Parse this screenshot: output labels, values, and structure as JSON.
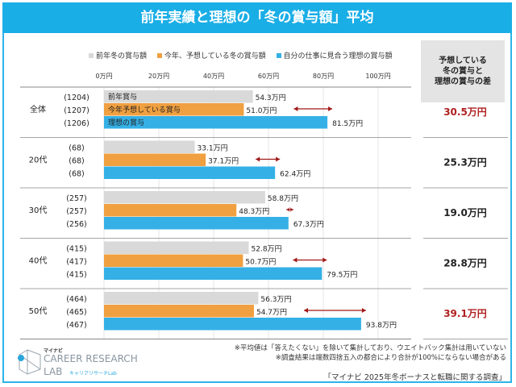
{
  "title": "前年実績と理想の「冬の賞与額」平均",
  "diff_header": "予想している\n冬の賞与と\n理想の賞与の差",
  "colors": {
    "prev": "#d9d9d9",
    "expected": "#f0a040",
    "ideal": "#35b0e6",
    "diff_red": "#b02020",
    "arrow": "#a01818"
  },
  "chart_data": {
    "type": "bar",
    "orientation": "horizontal",
    "xlim": [
      0,
      100
    ],
    "xticks": [
      "0万円",
      "20万円",
      "40万円",
      "60万円",
      "80万円",
      "100万円"
    ],
    "legend_position": "top",
    "series_names": [
      "前年冬の賞与額",
      "今年、予想している冬の賞与額",
      "自分の仕事に見合う理想の賞与額"
    ],
    "bar_labels_first_group": [
      "前年賞与",
      "今年予想している賞与",
      "理想の賞与"
    ],
    "categories": [
      {
        "name": "全体",
        "n": [
          "(1204)",
          "(1207)",
          "(1206)"
        ],
        "values": [
          54.3,
          51.0,
          81.5
        ],
        "labels": [
          "54.3万円",
          "51.0万円",
          "81.5万円"
        ],
        "diff": "30.5万円",
        "diff_highlight": true
      },
      {
        "name": "20代",
        "n": [
          "(68)",
          "(68)",
          "(68)"
        ],
        "values": [
          33.1,
          37.1,
          62.4
        ],
        "labels": [
          "33.1万円",
          "37.1万円",
          "62.4万円"
        ],
        "diff": "25.3万円",
        "diff_highlight": false
      },
      {
        "name": "30代",
        "n": [
          "(257)",
          "(257)",
          "(256)"
        ],
        "values": [
          58.8,
          48.3,
          67.3
        ],
        "labels": [
          "58.8万円",
          "48.3万円",
          "67.3万円"
        ],
        "diff": "19.0万円",
        "diff_highlight": false
      },
      {
        "name": "40代",
        "n": [
          "(415)",
          "(417)",
          "(415)"
        ],
        "values": [
          52.8,
          50.7,
          79.5
        ],
        "labels": [
          "52.8万円",
          "50.7万円",
          "79.5万円"
        ],
        "diff": "28.8万円",
        "diff_highlight": false
      },
      {
        "name": "50代",
        "n": [
          "(464)",
          "(465)",
          "(467)"
        ],
        "values": [
          56.3,
          54.7,
          93.8
        ],
        "labels": [
          "56.3万円",
          "54.7万円",
          "93.8万円"
        ],
        "diff": "39.1万円",
        "diff_highlight": true
      }
    ]
  },
  "notes": [
    "※平均値は「答えたくない」を除いて集計しており、ウエイトバック集計は用いていない",
    "※調査結果は端数四捨五入の都合により合計が100%にならない場合がある"
  ],
  "source": "「マイナビ 2025年冬ボーナスと転職に関する調査」",
  "logo": {
    "brand": "マイナビ",
    "line1": "CAREER RESEARCH",
    "line2": "LAB",
    "sub": "キャリアリサーチLab"
  }
}
